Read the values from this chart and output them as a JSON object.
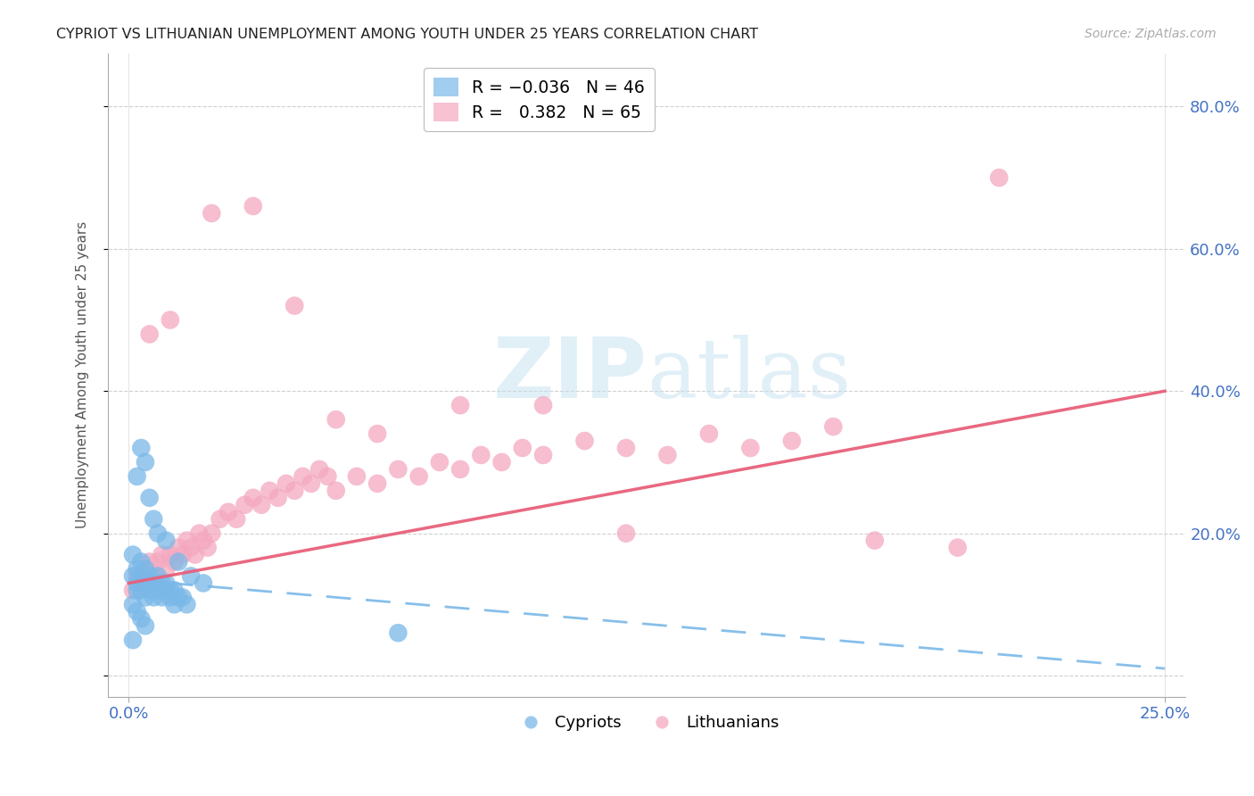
{
  "title": "CYPRIOT VS LITHUANIAN UNEMPLOYMENT AMONG YOUTH UNDER 25 YEARS CORRELATION CHART",
  "source": "Source: ZipAtlas.com",
  "ylabel": "Unemployment Among Youth under 25 years",
  "xlim": [
    0.0,
    0.25
  ],
  "ylim": [
    0.0,
    0.85
  ],
  "ytick_vals": [
    0.0,
    0.2,
    0.4,
    0.6,
    0.8
  ],
  "ytick_labels": [
    "",
    "20.0%",
    "40.0%",
    "60.0%",
    "80.0%"
  ],
  "xtick_vals": [
    0.0,
    0.25
  ],
  "xtick_labels": [
    "0.0%",
    "25.0%"
  ],
  "cypriot_color": "#7ab8e8",
  "lithuanian_color": "#f4a8c0",
  "trend_cypriot_color": "#7ab8e8",
  "trend_lithuanian_color": "#e8607a",
  "background_color": "#ffffff",
  "grid_color": "#d0d0d0",
  "watermark_color": "#d4e8f5",
  "legend_box_color": "#7ab8e8",
  "legend_box_color2": "#f4a8c0",
  "cypriot_x": [
    0.001,
    0.001,
    0.002,
    0.002,
    0.002,
    0.003,
    0.003,
    0.003,
    0.003,
    0.004,
    0.004,
    0.004,
    0.005,
    0.005,
    0.005,
    0.006,
    0.006,
    0.007,
    0.007,
    0.008,
    0.008,
    0.009,
    0.009,
    0.01,
    0.01,
    0.011,
    0.011,
    0.012,
    0.013,
    0.014,
    0.002,
    0.003,
    0.004,
    0.005,
    0.006,
    0.007,
    0.009,
    0.012,
    0.015,
    0.018,
    0.001,
    0.002,
    0.003,
    0.004,
    0.065,
    0.001
  ],
  "cypriot_y": [
    0.14,
    0.17,
    0.13,
    0.15,
    0.12,
    0.14,
    0.13,
    0.16,
    0.12,
    0.13,
    0.15,
    0.11,
    0.13,
    0.12,
    0.14,
    0.13,
    0.11,
    0.12,
    0.14,
    0.13,
    0.11,
    0.12,
    0.13,
    0.12,
    0.11,
    0.12,
    0.1,
    0.11,
    0.11,
    0.1,
    0.28,
    0.32,
    0.3,
    0.25,
    0.22,
    0.2,
    0.19,
    0.16,
    0.14,
    0.13,
    0.1,
    0.09,
    0.08,
    0.07,
    0.06,
    0.05
  ],
  "lithuanian_x": [
    0.001,
    0.002,
    0.003,
    0.004,
    0.005,
    0.006,
    0.007,
    0.008,
    0.009,
    0.01,
    0.011,
    0.012,
    0.013,
    0.014,
    0.015,
    0.016,
    0.017,
    0.018,
    0.019,
    0.02,
    0.022,
    0.024,
    0.026,
    0.028,
    0.03,
    0.032,
    0.034,
    0.036,
    0.038,
    0.04,
    0.042,
    0.044,
    0.046,
    0.048,
    0.05,
    0.055,
    0.06,
    0.065,
    0.07,
    0.075,
    0.08,
    0.085,
    0.09,
    0.095,
    0.1,
    0.11,
    0.12,
    0.13,
    0.14,
    0.15,
    0.16,
    0.17,
    0.005,
    0.01,
    0.02,
    0.03,
    0.04,
    0.05,
    0.06,
    0.08,
    0.1,
    0.12,
    0.18,
    0.2,
    0.21
  ],
  "lithuanian_y": [
    0.12,
    0.14,
    0.13,
    0.15,
    0.16,
    0.14,
    0.16,
    0.17,
    0.15,
    0.17,
    0.16,
    0.18,
    0.17,
    0.19,
    0.18,
    0.17,
    0.2,
    0.19,
    0.18,
    0.2,
    0.22,
    0.23,
    0.22,
    0.24,
    0.25,
    0.24,
    0.26,
    0.25,
    0.27,
    0.26,
    0.28,
    0.27,
    0.29,
    0.28,
    0.26,
    0.28,
    0.27,
    0.29,
    0.28,
    0.3,
    0.29,
    0.31,
    0.3,
    0.32,
    0.31,
    0.33,
    0.32,
    0.31,
    0.34,
    0.32,
    0.33,
    0.35,
    0.48,
    0.5,
    0.65,
    0.66,
    0.52,
    0.36,
    0.34,
    0.38,
    0.38,
    0.2,
    0.19,
    0.18,
    0.7
  ],
  "cy_trend_x": [
    0.0,
    0.25
  ],
  "cy_trend_y": [
    0.135,
    0.01
  ],
  "lt_trend_x": [
    0.0,
    0.25
  ],
  "lt_trend_y": [
    0.13,
    0.4
  ]
}
